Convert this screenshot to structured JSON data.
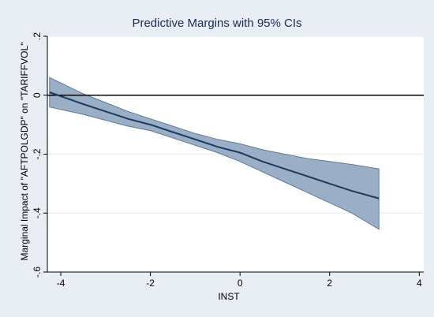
{
  "chart_data": {
    "type": "line",
    "title": "Predictive Margins with 95% CIs",
    "xlabel": "INST",
    "ylabel": "Marginal Impact of \"AFTPOLGDP\" on \"TARIFFVOL\"",
    "xlim": [
      -4.3,
      4.1
    ],
    "ylim": [
      -0.6,
      0.2
    ],
    "xticks": [
      -4,
      -2,
      0,
      2,
      4
    ],
    "yticks": [
      0.2,
      0,
      -0.2,
      -0.4,
      -0.6
    ],
    "xtick_labels": [
      "-4",
      "-2",
      "0",
      "2",
      "4"
    ],
    "ytick_labels": [
      ".2",
      "0",
      "-.2",
      "-.4",
      "-.6"
    ],
    "grid": true,
    "reference_line_y": 0,
    "series": [
      {
        "x": [
          -4.25,
          -3.5,
          -3.0,
          -2.5,
          -2.0,
          -1.5,
          -1.0,
          -0.5,
          0.0,
          0.5,
          1.0,
          1.5,
          2.0,
          2.5,
          3.1
        ],
        "estimate": [
          0.01,
          -0.03,
          -0.055,
          -0.08,
          -0.1,
          -0.125,
          -0.15,
          -0.175,
          -0.195,
          -0.225,
          -0.25,
          -0.275,
          -0.3,
          -0.325,
          -0.35
        ],
        "ci_upper": [
          0.06,
          0.005,
          -0.025,
          -0.055,
          -0.08,
          -0.105,
          -0.13,
          -0.15,
          -0.165,
          -0.185,
          -0.2,
          -0.215,
          -0.225,
          -0.235,
          -0.25
        ],
        "ci_lower": [
          -0.04,
          -0.065,
          -0.085,
          -0.105,
          -0.12,
          -0.145,
          -0.17,
          -0.195,
          -0.225,
          -0.26,
          -0.295,
          -0.33,
          -0.365,
          -0.4,
          -0.455
        ]
      }
    ]
  },
  "colors": {
    "background": "#e8eef3",
    "plot_background": "#ffffff",
    "ci_fill": "#9aafc6",
    "ci_stroke": "#5d7a9a",
    "line": "#1b3a5f",
    "title": "#1a2a5a",
    "grid": "#e6ebf0"
  }
}
